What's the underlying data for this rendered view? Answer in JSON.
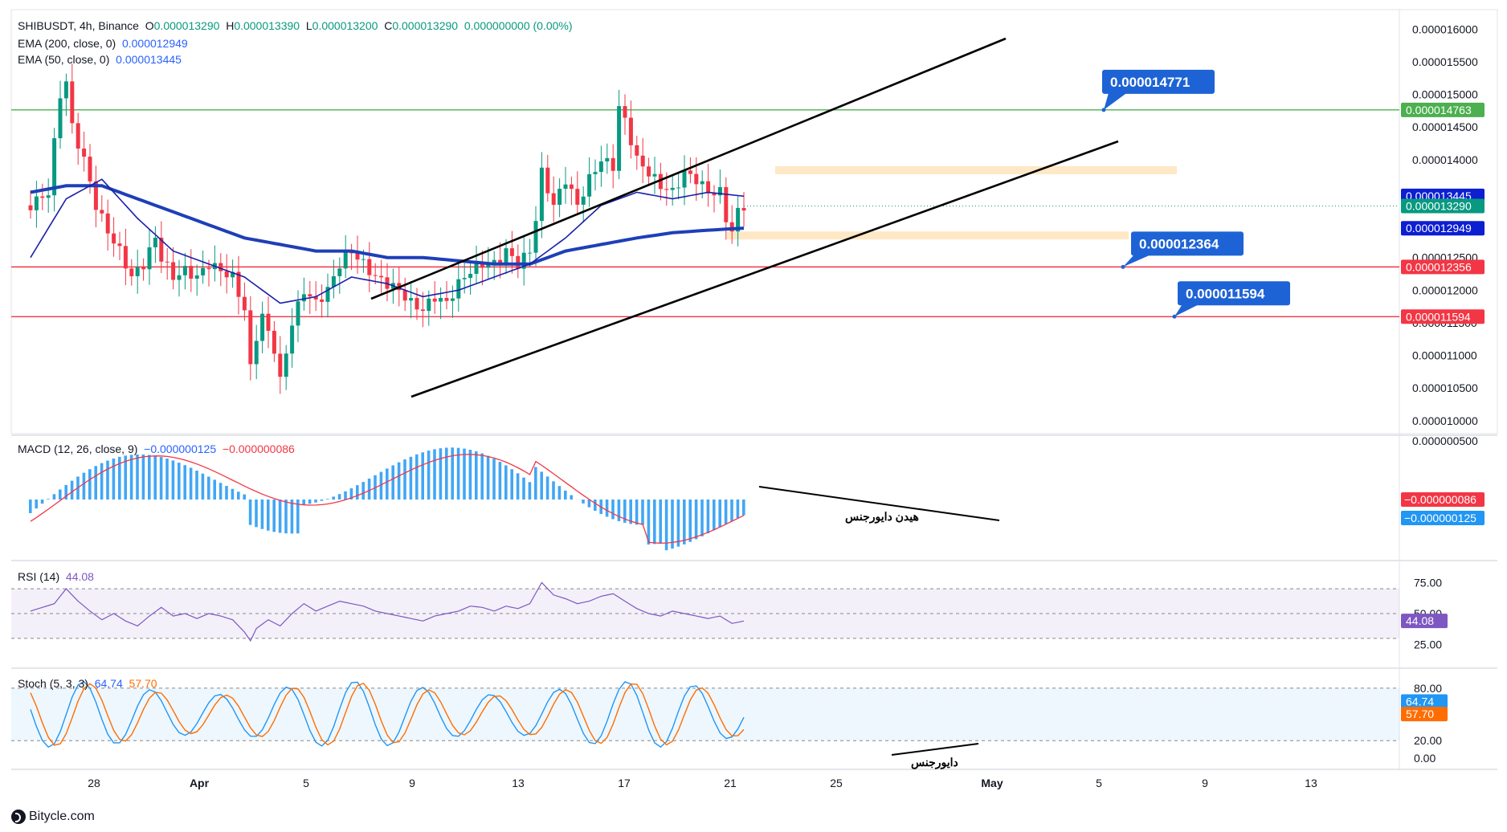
{
  "header": {
    "symbol": "SHIBUSDT, 4h, Binance",
    "o_label": "O",
    "o": "0.000013290",
    "h_label": "H",
    "h": "0.000013390",
    "l_label": "L",
    "l": "0.000013200",
    "c_label": "C",
    "c": "0.000013290",
    "change": "0.000000000 (0.00%)",
    "ema200_label": "EMA (200, close, 0)",
    "ema200": "0.000012949",
    "ema50_label": "EMA (50, close, 0)",
    "ema50": "0.000013445",
    "macd_label": "MACD (12, 26, close, 9)",
    "macd1": "−0.000000125",
    "macd2": "−0.000000086",
    "rsi_label": "RSI (14)",
    "rsi": "44.08",
    "stoch_label": "Stoch (5, 3, 3)",
    "stoch_k": "64.74",
    "stoch_d": "57.70"
  },
  "footer": {
    "brand": "Bitycle.com"
  },
  "chart_data": {
    "type": "candlestick",
    "symbol": "SHIBUSDT",
    "interval": "4h",
    "exchange": "Binance",
    "price_axis": {
      "ticks": [
        "0.000016000",
        "0.000015500",
        "0.000015000",
        "0.000014500",
        "0.000014000",
        "0.000013500",
        "0.000013000",
        "0.000012500",
        "0.000012000",
        "0.000011500",
        "0.000011000",
        "0.000010500",
        "0.000010000"
      ],
      "tick_values": [
        1.6e-05,
        1.55e-05,
        1.5e-05,
        1.45e-05,
        1.4e-05,
        1.35e-05,
        1.3e-05,
        1.25e-05,
        1.2e-05,
        1.15e-05,
        1.1e-05,
        1.05e-05,
        1e-05
      ]
    },
    "x_axis": {
      "labels": [
        "28",
        "Apr",
        "5",
        "9",
        "13",
        "17",
        "21",
        "25",
        "May",
        "5",
        "9",
        "13"
      ]
    },
    "price_close_path": [
      [
        -6,
        1.33e-05
      ],
      [
        -3,
        1.35e-05
      ],
      [
        -1,
        1.5e-05
      ],
      [
        0,
        1.52e-05
      ],
      [
        1,
        1.45e-05
      ],
      [
        3,
        1.4e-05
      ],
      [
        5,
        1.33e-05
      ],
      [
        7,
        1.29e-05
      ],
      [
        9,
        1.26e-05
      ],
      [
        11,
        1.22e-05
      ],
      [
        13,
        1.24e-05
      ],
      [
        15,
        1.28e-05
      ],
      [
        16,
        1.25e-05
      ],
      [
        18,
        1.22e-05
      ],
      [
        20,
        1.23e-05
      ],
      [
        22,
        1.22e-05
      ],
      [
        24,
        1.24e-05
      ],
      [
        26,
        1.23e-05
      ],
      [
        28,
        1.22e-05
      ],
      [
        30,
        1.17e-05
      ],
      [
        31,
        1.08e-05
      ],
      [
        32,
        1.13e-05
      ],
      [
        33,
        1.16e-05
      ],
      [
        35,
        1.11e-05
      ],
      [
        36,
        1.06e-05
      ],
      [
        38,
        1.15e-05
      ],
      [
        40,
        1.2e-05
      ],
      [
        42,
        1.18e-05
      ],
      [
        44,
        1.2e-05
      ],
      [
        46,
        1.24e-05
      ],
      [
        48,
        1.26e-05
      ],
      [
        50,
        1.24e-05
      ],
      [
        52,
        1.22e-05
      ],
      [
        54,
        1.21e-05
      ],
      [
        56,
        1.2e-05
      ],
      [
        58,
        1.18e-05
      ],
      [
        60,
        1.17e-05
      ],
      [
        62,
        1.19e-05
      ],
      [
        64,
        1.18e-05
      ],
      [
        66,
        1.21e-05
      ],
      [
        68,
        1.23e-05
      ],
      [
        70,
        1.24e-05
      ],
      [
        72,
        1.24e-05
      ],
      [
        74,
        1.26e-05
      ],
      [
        76,
        1.24e-05
      ],
      [
        78,
        1.26e-05
      ],
      [
        79,
        1.31e-05
      ],
      [
        80,
        1.38e-05
      ],
      [
        82,
        1.33e-05
      ],
      [
        84,
        1.37e-05
      ],
      [
        86,
        1.33e-05
      ],
      [
        88,
        1.37e-05
      ],
      [
        90,
        1.4e-05
      ],
      [
        92,
        1.39e-05
      ],
      [
        93,
        1.48e-05
      ],
      [
        94,
        1.46e-05
      ],
      [
        96,
        1.4e-05
      ],
      [
        98,
        1.38e-05
      ],
      [
        100,
        1.36e-05
      ],
      [
        102,
        1.35e-05
      ],
      [
        104,
        1.38e-05
      ],
      [
        106,
        1.37e-05
      ],
      [
        108,
        1.35e-05
      ],
      [
        110,
        1.35e-05
      ],
      [
        111,
        1.31e-05
      ],
      [
        112,
        1.29e-05
      ],
      [
        113,
        1.32e-05
      ],
      [
        114,
        1.33e-05
      ]
    ],
    "ema50_path": [
      [
        -6,
        1.25e-05
      ],
      [
        0,
        1.34e-05
      ],
      [
        6,
        1.37e-05
      ],
      [
        12,
        1.31e-05
      ],
      [
        18,
        1.26e-05
      ],
      [
        24,
        1.24e-05
      ],
      [
        30,
        1.22e-05
      ],
      [
        36,
        1.18e-05
      ],
      [
        42,
        1.19e-05
      ],
      [
        48,
        1.22e-05
      ],
      [
        54,
        1.21e-05
      ],
      [
        60,
        1.19e-05
      ],
      [
        66,
        1.2e-05
      ],
      [
        72,
        1.22e-05
      ],
      [
        78,
        1.24e-05
      ],
      [
        84,
        1.28e-05
      ],
      [
        90,
        1.33e-05
      ],
      [
        96,
        1.35e-05
      ],
      [
        102,
        1.34e-05
      ],
      [
        108,
        1.35e-05
      ],
      [
        114,
        1.344e-05
      ]
    ],
    "ema200_path": [
      [
        -6,
        1.35e-05
      ],
      [
        0,
        1.36e-05
      ],
      [
        6,
        1.36e-05
      ],
      [
        12,
        1.34e-05
      ],
      [
        18,
        1.32e-05
      ],
      [
        24,
        1.3e-05
      ],
      [
        30,
        1.28e-05
      ],
      [
        36,
        1.27e-05
      ],
      [
        42,
        1.26e-05
      ],
      [
        48,
        1.26e-05
      ],
      [
        54,
        1.25e-05
      ],
      [
        60,
        1.25e-05
      ],
      [
        66,
        1.245e-05
      ],
      [
        72,
        1.24e-05
      ],
      [
        78,
        1.24e-05
      ],
      [
        84,
        1.26e-05
      ],
      [
        90,
        1.27e-05
      ],
      [
        96,
        1.28e-05
      ],
      [
        102,
        1.288e-05
      ],
      [
        108,
        1.292e-05
      ],
      [
        114,
        1.295e-05
      ]
    ],
    "horizontal_levels": [
      {
        "price": 1.4763e-05,
        "color": "#4caf50",
        "axis_label": "0.000014763",
        "callout": "0.000014771"
      },
      {
        "price": 1.2356e-05,
        "color": "#f23645",
        "axis_label": "0.000012356",
        "callout": "0.000012364"
      },
      {
        "price": 1.1594e-05,
        "color": "#f23645",
        "axis_label": "0.000011594",
        "callout": "0.000011594"
      }
    ],
    "axis_price_labels": [
      {
        "price": 1.3445e-05,
        "text": "0.000013445",
        "color": "#0c1fd1"
      },
      {
        "price": 1.329e-05,
        "text": "0.000013290",
        "color": "#089981"
      },
      {
        "price": 1.2949e-05,
        "text": "0.000012949",
        "color": "#0c1fd1"
      }
    ],
    "zones": [
      {
        "from": 1.38e-05,
        "to": 1.39e-05
      },
      {
        "from": 1.28e-05,
        "to": 1.29e-05
      }
    ],
    "trendlines": [
      {
        "from": [
          36,
          1.18e-05
        ],
        "to": [
          118,
          1.59e-05
        ]
      },
      {
        "from": [
          38,
          1.03e-05
        ],
        "to": [
          120,
          1.42e-05
        ]
      }
    ],
    "macd": {
      "axis_ticks": [
        "0.000000500"
      ],
      "macd_value": "−0.000000125",
      "signal_value": "−0.000000086",
      "annotation": "هیدن دایورجنس"
    },
    "rsi": {
      "axis_ticks": [
        "75.00",
        "50.00",
        "25.00"
      ],
      "levels": [
        70,
        50,
        30
      ],
      "value": "44.08",
      "path": [
        [
          -6,
          52
        ],
        [
          -2,
          58
        ],
        [
          0,
          70
        ],
        [
          2,
          60
        ],
        [
          4,
          52
        ],
        [
          6,
          45
        ],
        [
          8,
          50
        ],
        [
          10,
          44
        ],
        [
          12,
          40
        ],
        [
          14,
          48
        ],
        [
          16,
          55
        ],
        [
          18,
          48
        ],
        [
          20,
          50
        ],
        [
          22,
          46
        ],
        [
          24,
          50
        ],
        [
          26,
          48
        ],
        [
          28,
          45
        ],
        [
          30,
          35
        ],
        [
          31,
          28
        ],
        [
          32,
          38
        ],
        [
          34,
          45
        ],
        [
          36,
          40
        ],
        [
          38,
          50
        ],
        [
          40,
          58
        ],
        [
          42,
          52
        ],
        [
          44,
          56
        ],
        [
          46,
          60
        ],
        [
          48,
          58
        ],
        [
          50,
          56
        ],
        [
          52,
          52
        ],
        [
          54,
          50
        ],
        [
          56,
          48
        ],
        [
          58,
          46
        ],
        [
          60,
          44
        ],
        [
          62,
          48
        ],
        [
          64,
          50
        ],
        [
          66,
          52
        ],
        [
          68,
          56
        ],
        [
          70,
          55
        ],
        [
          72,
          52
        ],
        [
          74,
          56
        ],
        [
          76,
          54
        ],
        [
          78,
          58
        ],
        [
          80,
          75
        ],
        [
          82,
          65
        ],
        [
          84,
          62
        ],
        [
          86,
          58
        ],
        [
          88,
          60
        ],
        [
          90,
          64
        ],
        [
          92,
          66
        ],
        [
          94,
          60
        ],
        [
          96,
          54
        ],
        [
          98,
          50
        ],
        [
          100,
          48
        ],
        [
          102,
          52
        ],
        [
          104,
          50
        ],
        [
          106,
          48
        ],
        [
          108,
          46
        ],
        [
          110,
          48
        ],
        [
          112,
          42
        ],
        [
          114,
          44
        ]
      ]
    },
    "stochastic": {
      "axis_ticks": [
        "80.00",
        "20.00",
        "0.00"
      ],
      "levels": [
        80,
        20
      ],
      "k_value": "64.74",
      "d_value": "57.70",
      "annotation": "دایورجنس"
    }
  }
}
